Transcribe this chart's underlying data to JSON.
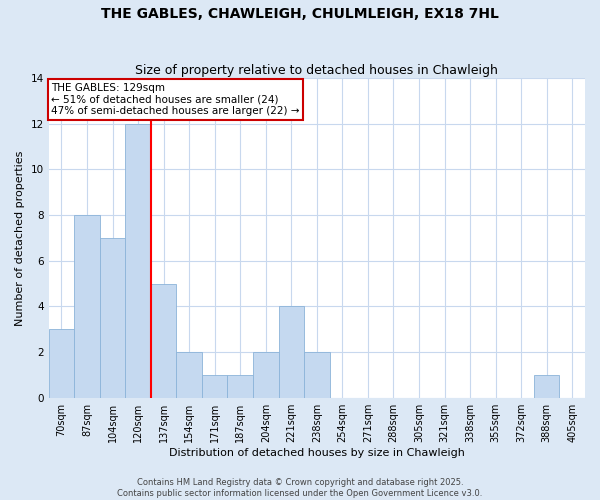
{
  "title": "THE GABLES, CHAWLEIGH, CHULMLEIGH, EX18 7HL",
  "subtitle": "Size of property relative to detached houses in Chawleigh",
  "xlabel": "Distribution of detached houses by size in Chawleigh",
  "ylabel": "Number of detached properties",
  "bin_labels": [
    "70sqm",
    "87sqm",
    "104sqm",
    "120sqm",
    "137sqm",
    "154sqm",
    "171sqm",
    "187sqm",
    "204sqm",
    "221sqm",
    "238sqm",
    "254sqm",
    "271sqm",
    "288sqm",
    "305sqm",
    "321sqm",
    "338sqm",
    "355sqm",
    "372sqm",
    "388sqm",
    "405sqm"
  ],
  "bin_values": [
    3,
    8,
    7,
    12,
    5,
    2,
    1,
    1,
    2,
    4,
    2,
    0,
    0,
    0,
    0,
    0,
    0,
    0,
    0,
    1,
    0
  ],
  "bar_color": "#c5d9f0",
  "bar_edge_color": "#8cb4d9",
  "red_line_x": 3.5,
  "annotation_text": "THE GABLES: 129sqm\n← 51% of detached houses are smaller (24)\n47% of semi-detached houses are larger (22) →",
  "annotation_box_facecolor": "#ffffff",
  "annotation_box_edgecolor": "#cc0000",
  "ylim": [
    0,
    14
  ],
  "yticks": [
    0,
    2,
    4,
    6,
    8,
    10,
    12,
    14
  ],
  "footer_line1": "Contains HM Land Registry data © Crown copyright and database right 2025.",
  "footer_line2": "Contains public sector information licensed under the Open Government Licence v3.0.",
  "bg_color": "#dce8f5",
  "plot_bg_color": "#ffffff",
  "grid_color": "#c8d8ee",
  "title_fontsize": 10,
  "subtitle_fontsize": 9,
  "tick_fontsize": 7,
  "ylabel_fontsize": 8,
  "xlabel_fontsize": 8,
  "annotation_fontsize": 7.5,
  "footer_fontsize": 6
}
